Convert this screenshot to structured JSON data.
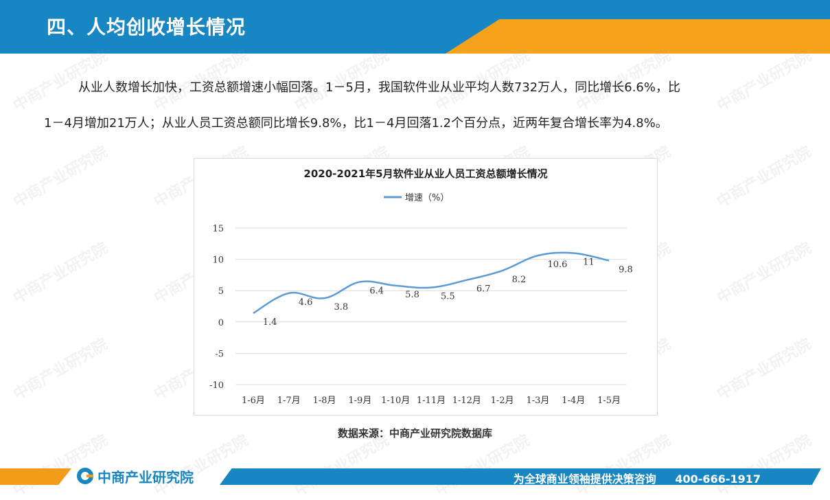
{
  "header": {
    "title": "四、人均创收增长情况"
  },
  "paragraph": {
    "line1": "从业人数增长加快，工资总额增速小幅回落。1－5月，我国软件业从业平均人数732万人，同比增长6.6%，比",
    "line2": "1－4月增加21万人；从业人员工资总额同比增长9.8%，比1－4月回落1.2个百分点，近两年复合增长率为4.8%。"
  },
  "chart_data": {
    "type": "line",
    "title": "2020-2021年5月软件业从业人员工资总额增长情况",
    "categories": [
      "1-6月",
      "1-7月",
      "1-8月",
      "1-9月",
      "1-10月",
      "1-11月",
      "1-12月",
      "1-2月",
      "1-3月",
      "1-4月",
      "1-5月"
    ],
    "series": [
      {
        "name": "增速（%）",
        "values": [
          1.4,
          4.6,
          3.8,
          6.4,
          5.8,
          5.5,
          6.7,
          8.2,
          10.6,
          11,
          9.8
        ],
        "color": "#5b9bd5"
      }
    ],
    "data_labels": [
      "1.4",
      "4.6",
      "3.8",
      "6.4",
      "5.8",
      "5.5",
      "6.7",
      "8.2",
      "10.6",
      "11",
      "9.8"
    ],
    "ylim": [
      -10,
      15
    ],
    "yticks": [
      15,
      10,
      5,
      0,
      -5,
      -10
    ],
    "ytick_labels": [
      "15",
      "10",
      "5",
      "0",
      "-5",
      "-10"
    ],
    "grid": true,
    "legend": "top-center",
    "xlabel": "",
    "ylabel": ""
  },
  "source": {
    "text": "数据来源：中商产业研究院数据库"
  },
  "footer": {
    "logo_text": "中商产业研究院",
    "slogan": "为全球商业领袖提供决策咨询",
    "phone": "400-666-1917"
  },
  "watermark": {
    "text": "中商产业研究院"
  },
  "colors": {
    "primary": "#1786c2",
    "accent": "#f7a21b",
    "line": "#5b9bd5"
  }
}
